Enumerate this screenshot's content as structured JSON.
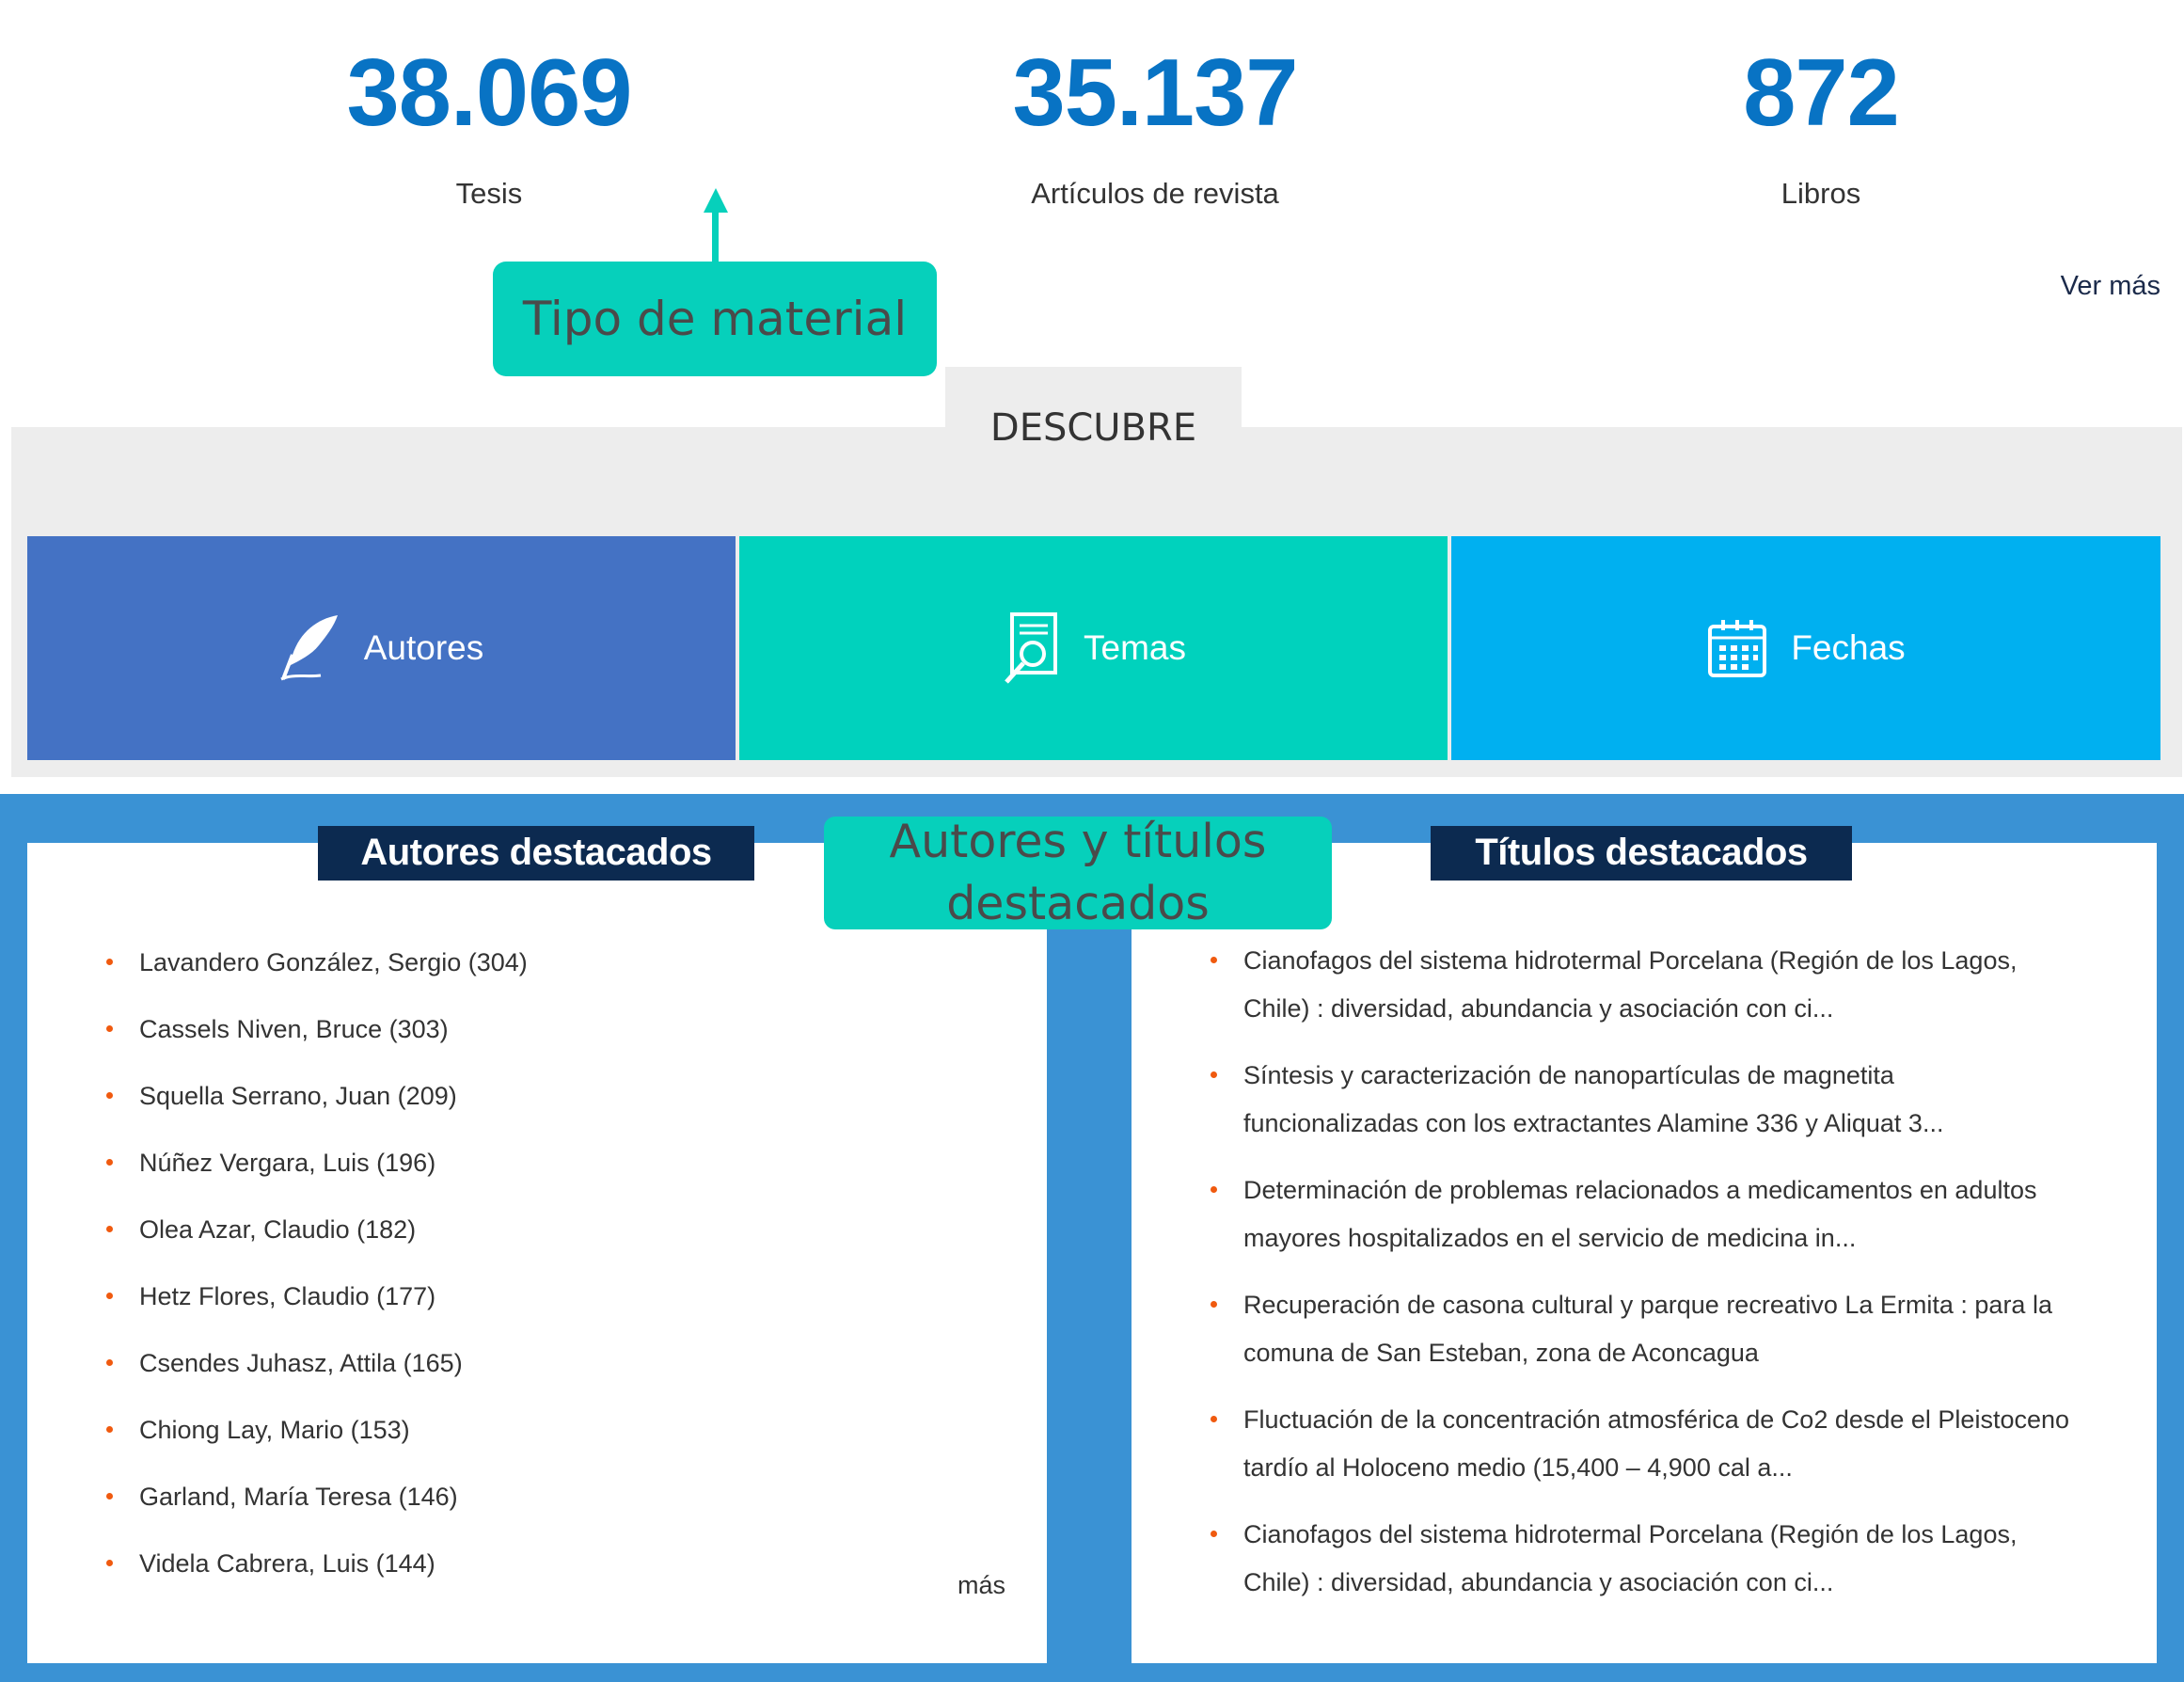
{
  "stats": [
    {
      "value": "38.069",
      "label": "Tesis"
    },
    {
      "value": "35.137",
      "label": "Artículos de revista"
    },
    {
      "value": "872",
      "label": "Libros"
    }
  ],
  "ver_mas": "Ver más",
  "callouts": {
    "material": "Tipo de material",
    "featured_line1": "Autores y títulos",
    "featured_line2": "destacados"
  },
  "descubre": {
    "title": "DESCUBRE",
    "tiles": [
      {
        "label": "Autores",
        "icon": "quill-icon",
        "color": "#4472c4"
      },
      {
        "label": "Temas",
        "icon": "document-search-icon",
        "color": "#00d2bd"
      },
      {
        "label": "Fechas",
        "icon": "calendar-icon",
        "color": "#00b0f0"
      }
    ]
  },
  "featured_authors": {
    "title": "Autores destacados",
    "items": [
      "Lavandero González, Sergio (304)",
      "Cassels Niven, Bruce (303)",
      "Squella Serrano, Juan (209)",
      "Núñez Vergara, Luis (196)",
      "Olea Azar, Claudio (182)",
      "Hetz Flores, Claudio (177)",
      "Csendes Juhasz, Attila (165)",
      "Chiong Lay, Mario (153)",
      "Garland, María Teresa (146)",
      "Videla Cabrera, Luis (144)"
    ],
    "more": "más"
  },
  "featured_titles": {
    "title": "Títulos destacados",
    "items": [
      {
        "line1": "Cianofagos del sistema hidrotermal Porcelana (Región de los Lagos,",
        "line2": "Chile) : diversidad, abundancia y asociación con ci..."
      },
      {
        "line1": "Síntesis y caracterización de nanopartículas de magnetita",
        "line2": "funcionalizadas con los extractantes Alamine 336 y Aliquat 3..."
      },
      {
        "line1": "Determinación de problemas relacionados a medicamentos en adultos",
        "line2": "mayores hospitalizados en el servicio de medicina in..."
      },
      {
        "line1": "Recuperación de casona cultural y parque recreativo La Ermita : para la",
        "line2": "comuna de San Esteban, zona de Aconcagua"
      },
      {
        "line1": "Fluctuación de la concentración atmosférica de Co2 desde el Pleistoceno",
        "line2": "tardío al Holoceno medio (15,400 – 4,900 cal a..."
      },
      {
        "line1": "Cianofagos del sistema hidrotermal Porcelana (Región de los Lagos,",
        "line2": "Chile) : diversidad, abundancia y asociación con ci..."
      }
    ]
  },
  "colors": {
    "accent_blue": "#0873c4",
    "callout_teal": "#06d0bb",
    "featured_bg": "#3a92d4",
    "header_navy": "#0c2a50",
    "bullet_orange": "#f05a0f"
  }
}
